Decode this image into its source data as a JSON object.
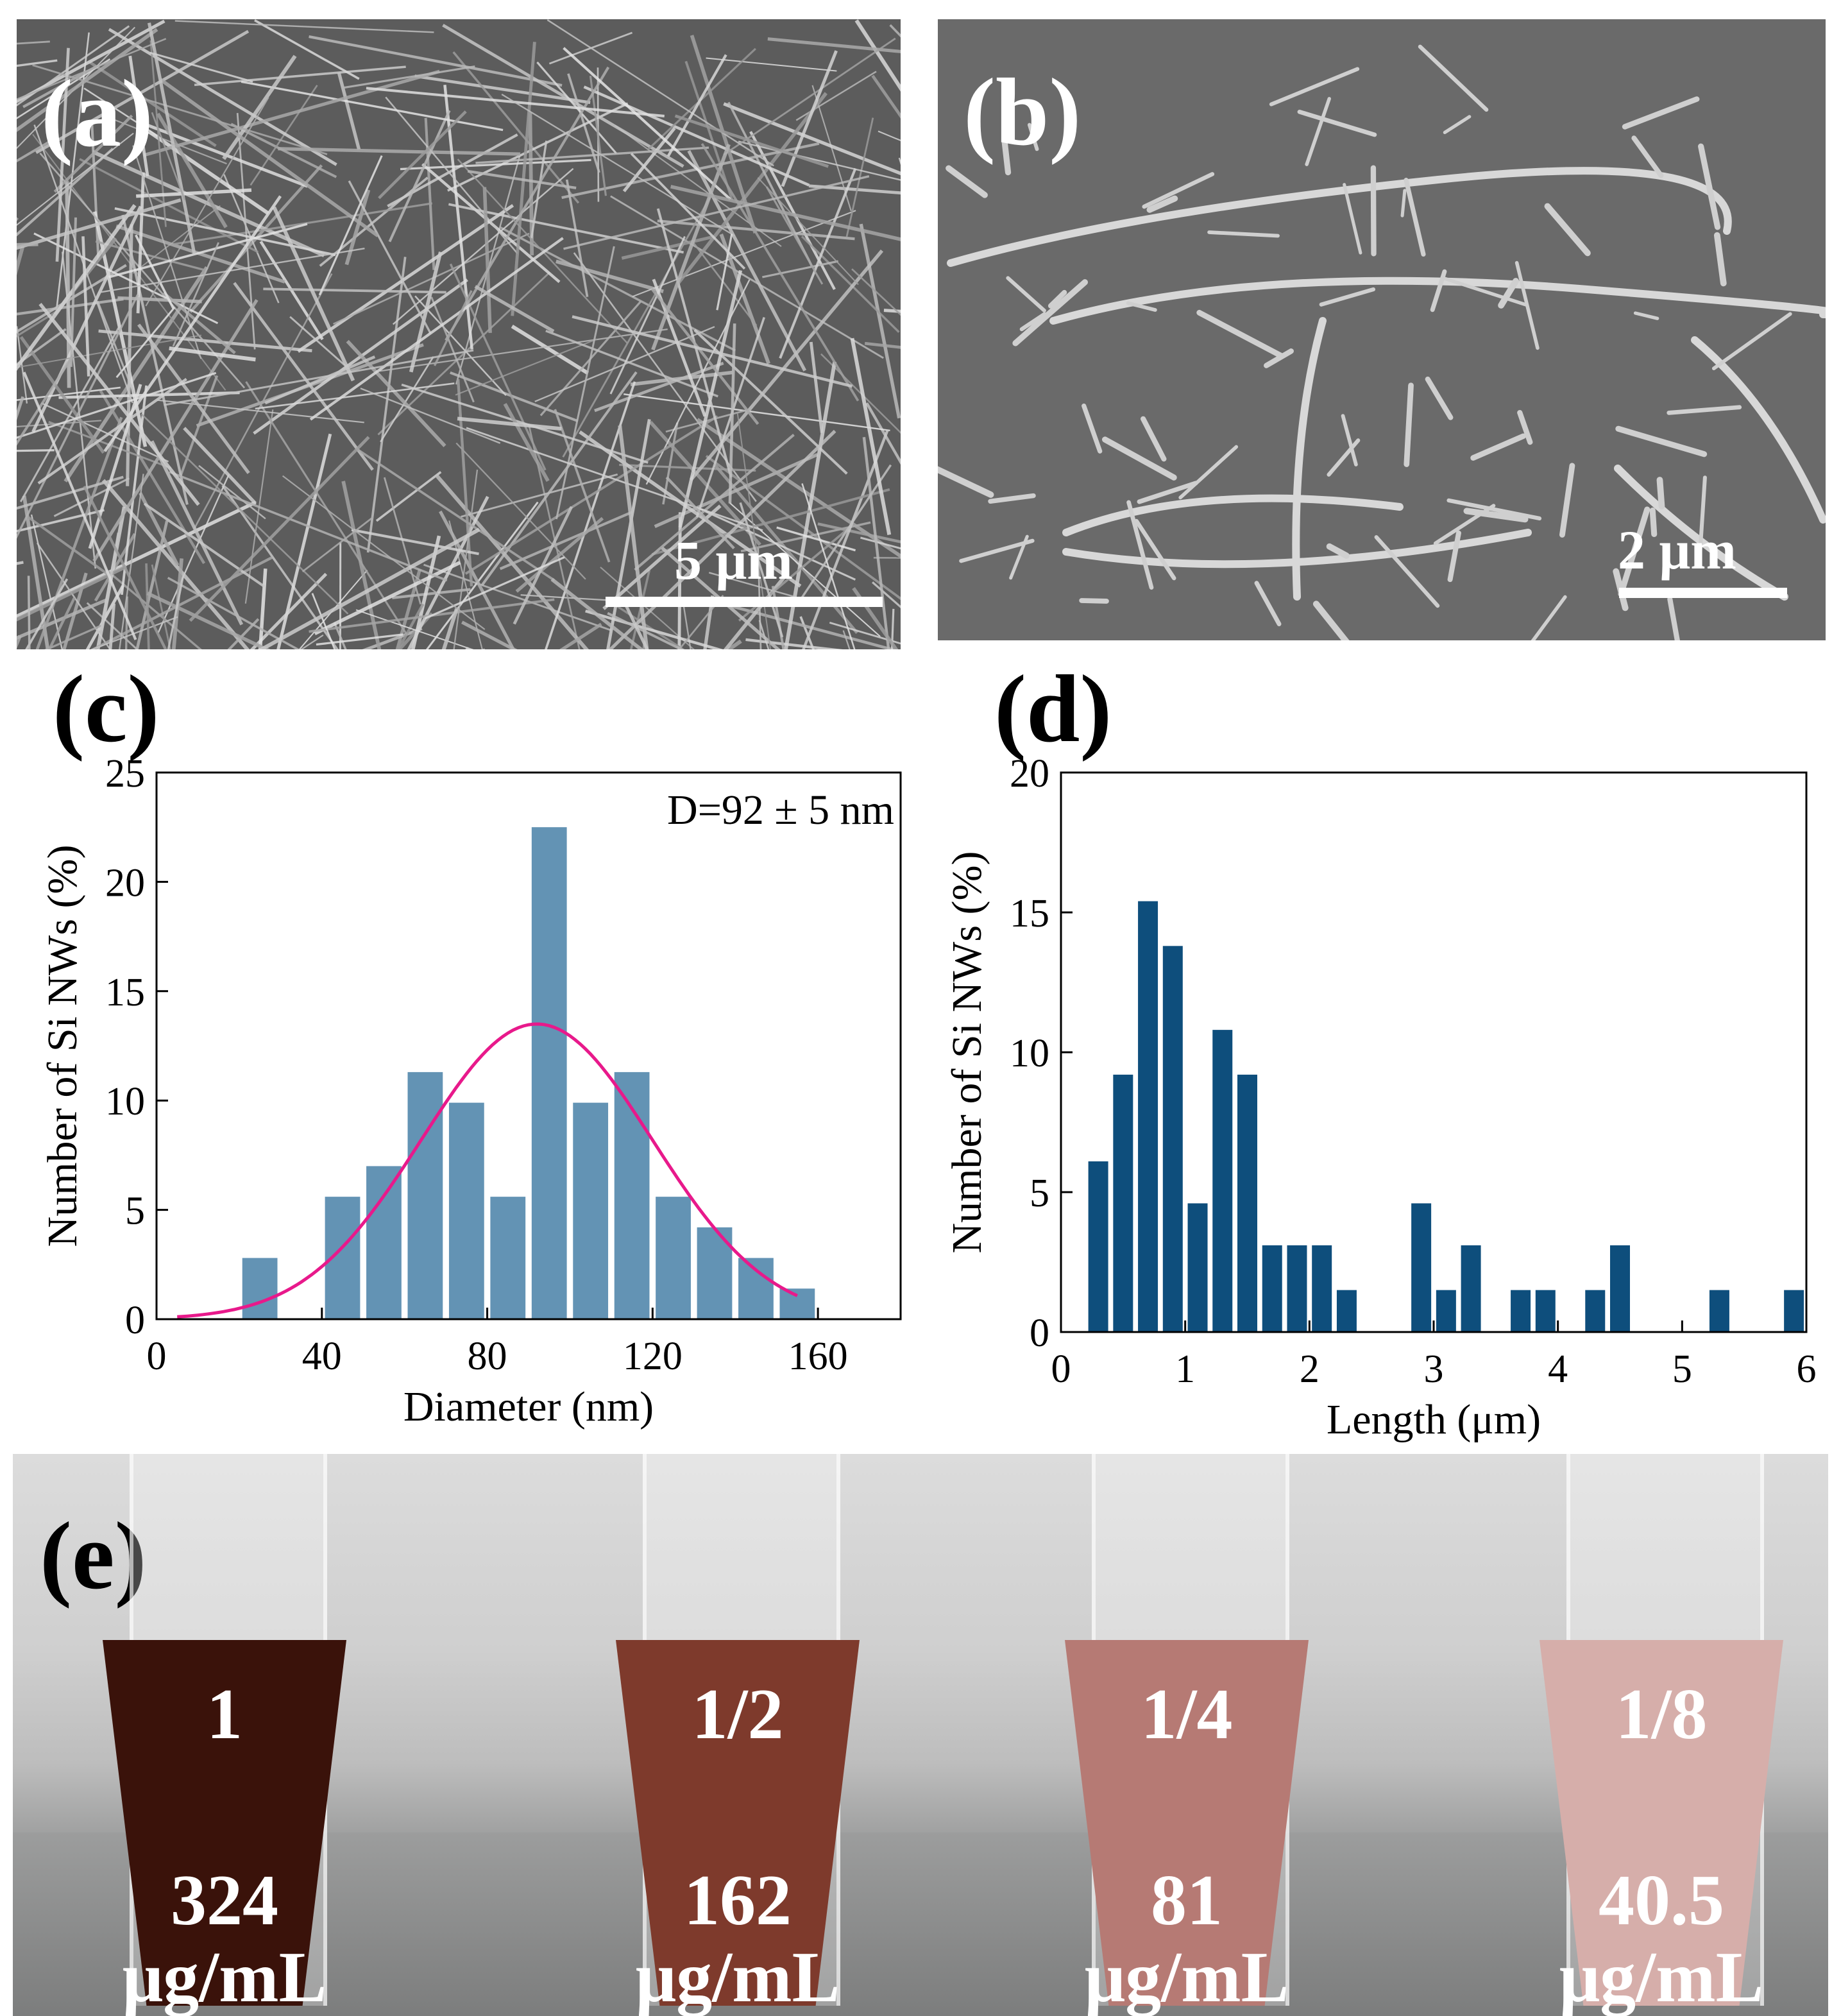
{
  "panels": {
    "a": {
      "label": "(a)",
      "scale": "5 μm"
    },
    "b": {
      "label": "(b)",
      "scale": "2 μm"
    },
    "c": {
      "label": "(c)"
    },
    "d": {
      "label": "(d)"
    },
    "e": {
      "label": "(e)"
    }
  },
  "chart_data": [
    {
      "id": "c",
      "type": "bar",
      "xlabel": "Diameter (nm)",
      "ylabel": "Number of Si NWs (%)",
      "annotation": "D=92 ± 5 nm",
      "xlim": [
        0,
        180
      ],
      "ylim": [
        0,
        25
      ],
      "xticks": [
        0,
        40,
        80,
        120,
        160
      ],
      "yticks": [
        0,
        5,
        10,
        15,
        20,
        25
      ],
      "bar_width": 8.5,
      "bar_color": "#6393B4",
      "x": [
        25,
        45,
        55,
        65,
        75,
        85,
        95,
        105,
        115,
        125,
        135,
        145,
        155
      ],
      "values": [
        2.8,
        5.6,
        7.0,
        11.3,
        9.9,
        5.6,
        22.5,
        9.9,
        11.3,
        5.6,
        4.2,
        2.8,
        1.4
      ],
      "fit": {
        "type": "gaussian",
        "mean": 92,
        "sigma": 28,
        "amplitude": 13.5,
        "xrange": [
          5,
          155
        ],
        "color": "#E8198B"
      }
    },
    {
      "id": "d",
      "type": "bar",
      "xlabel": "Length (μm)",
      "ylabel": "Number of Si NWs (%)",
      "xlim": [
        0,
        6
      ],
      "ylim": [
        0,
        20
      ],
      "xticks": [
        0,
        1,
        2,
        3,
        4,
        5,
        6
      ],
      "yticks": [
        0,
        5,
        10,
        15,
        20
      ],
      "bar_width": 0.16,
      "bar_color": "#0E4E7C",
      "x": [
        0.3,
        0.5,
        0.7,
        0.9,
        1.1,
        1.3,
        1.5,
        1.7,
        1.9,
        2.1,
        2.3,
        2.9,
        3.1,
        3.3,
        3.7,
        3.9,
        4.3,
        4.5,
        5.3,
        5.9
      ],
      "values": [
        6.1,
        9.2,
        15.4,
        13.8,
        4.6,
        10.8,
        9.2,
        3.1,
        3.1,
        3.1,
        1.5,
        4.6,
        1.5,
        3.1,
        1.5,
        1.5,
        1.5,
        3.1,
        1.5,
        1.5
      ]
    }
  ],
  "tubes": [
    {
      "ratio": "1",
      "conc": "324",
      "unit": "μg/mL",
      "color": "#3a120a"
    },
    {
      "ratio": "1/2",
      "conc": "162",
      "unit": "μg/mL",
      "color": "#7e3a2c"
    },
    {
      "ratio": "1/4",
      "conc": "81",
      "unit": "μg/mL",
      "color": "#b67a74"
    },
    {
      "ratio": "1/8",
      "conc": "40.5",
      "unit": "μg/mL",
      "color": "#d6aeaa"
    }
  ]
}
